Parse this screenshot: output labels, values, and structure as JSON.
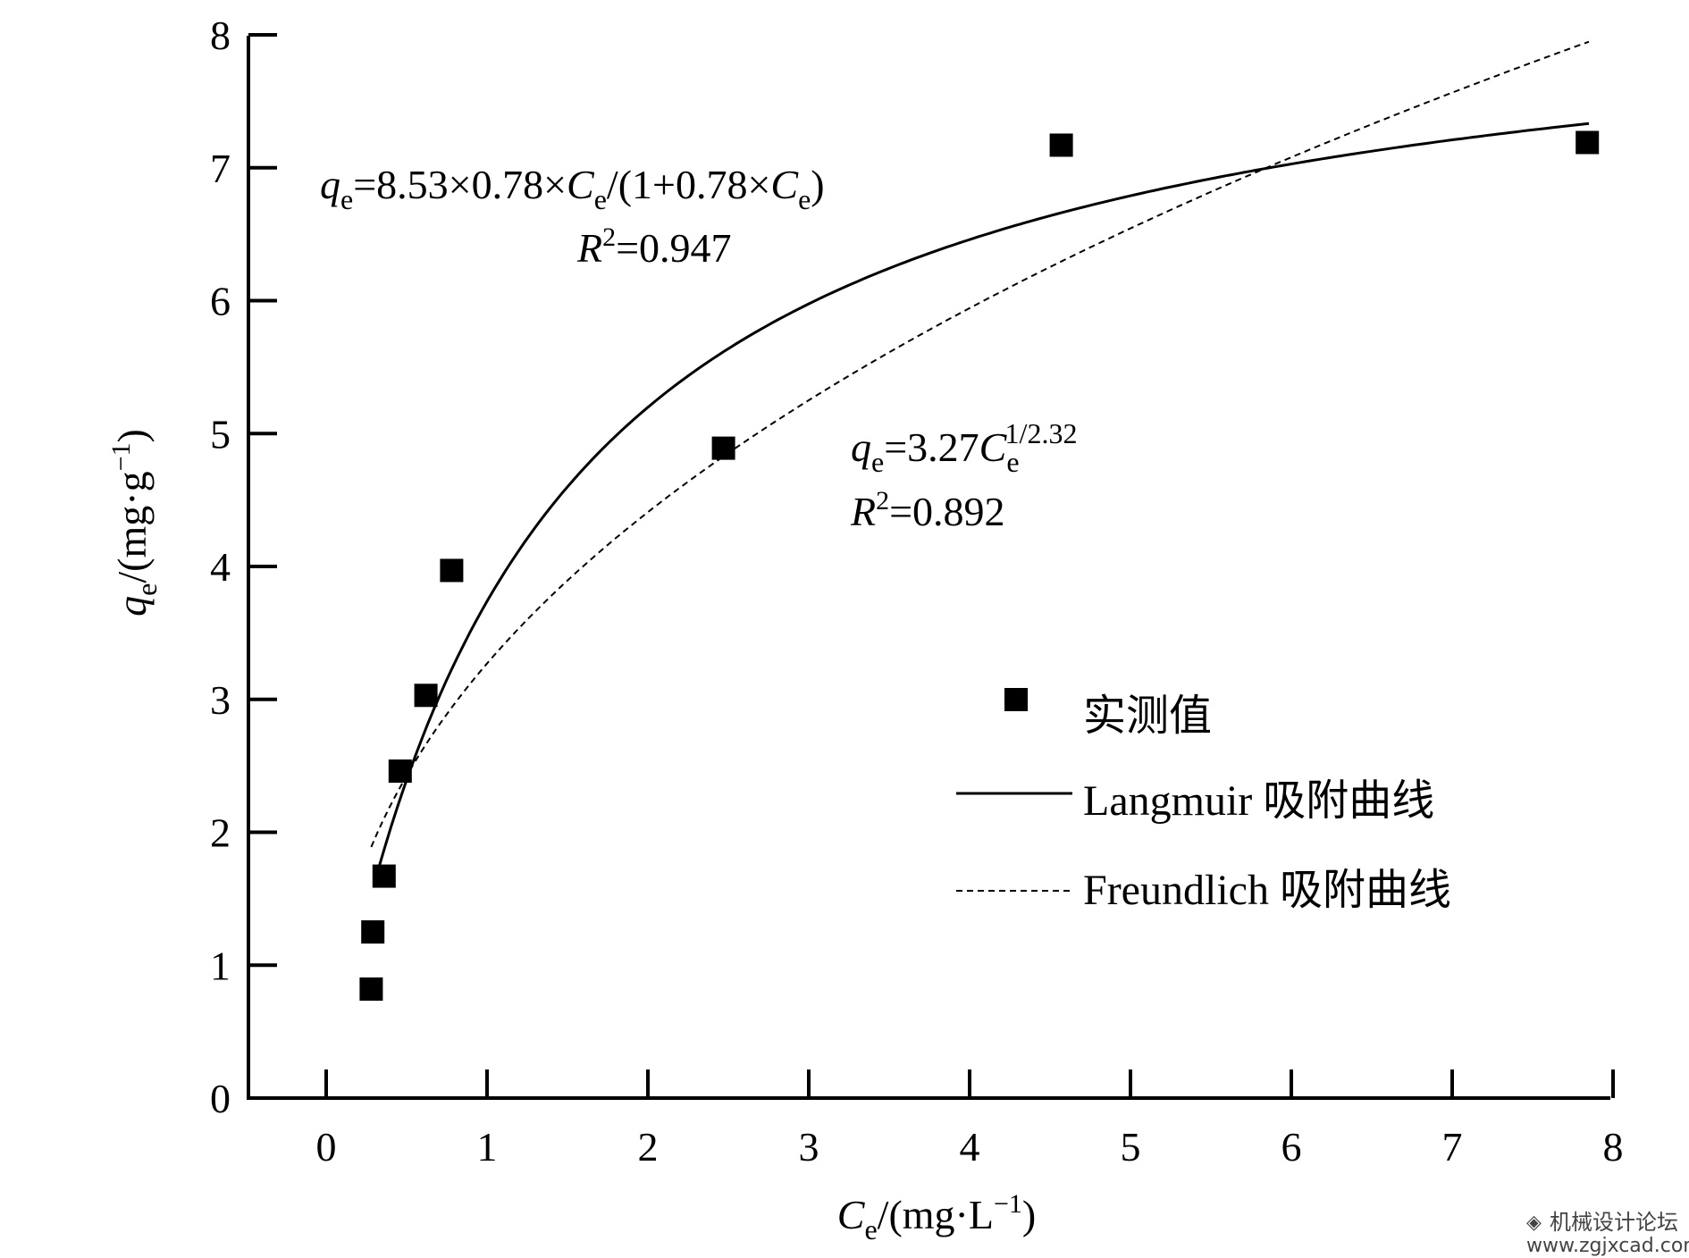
{
  "chart_data": {
    "type": "scatter",
    "xlabel": {
      "symbol": "C",
      "sub": "e",
      "unit_pre": "/(mg·L",
      "sup": "−1",
      "unit_post": ")"
    },
    "ylabel": {
      "symbol": "q",
      "sub": "e",
      "unit_pre": "/(mg·g",
      "sup": "−1",
      "unit_post": ")"
    },
    "xlim": [
      -0.5,
      8
    ],
    "ylim": [
      0,
      8
    ],
    "x_ticks": [
      0,
      1,
      2,
      3,
      4,
      5,
      6,
      7,
      8
    ],
    "y_ticks": [
      0,
      1,
      2,
      3,
      4,
      5,
      6,
      7,
      8
    ],
    "grid": false,
    "legend_position": "center-right",
    "series": [
      {
        "name": "实测值",
        "kind": "points",
        "marker": "filled-square",
        "color": "#000000",
        "points": [
          {
            "x": 0.28,
            "y": 0.82
          },
          {
            "x": 0.29,
            "y": 1.25
          },
          {
            "x": 0.36,
            "y": 1.67
          },
          {
            "x": 0.46,
            "y": 2.46
          },
          {
            "x": 0.62,
            "y": 3.03
          },
          {
            "x": 0.78,
            "y": 3.97
          },
          {
            "x": 2.47,
            "y": 4.89
          },
          {
            "x": 4.57,
            "y": 7.17
          },
          {
            "x": 7.84,
            "y": 7.19
          }
        ]
      },
      {
        "name": "Langmuir 吸附曲线",
        "kind": "curve",
        "model": "langmuir",
        "params": {
          "qm": 8.53,
          "b": 0.78
        },
        "x_range": [
          0.33,
          7.85
        ],
        "line_style": "solid",
        "color": "#000000"
      },
      {
        "name": "Freundlich 吸附曲线",
        "kind": "curve",
        "model": "freundlich",
        "params": {
          "k": 3.27,
          "n": 2.32
        },
        "x_range": [
          0.28,
          7.85
        ],
        "line_style": "dashed",
        "color": "#000000"
      }
    ],
    "annotations": {
      "langmuir": {
        "q": "q",
        "q_sub": "e",
        "eq_text": "=8.53×0.78×",
        "c": "C",
        "c_sub": "e",
        "eq_mid": "/(1+0.78×",
        "c2": "C",
        "c2_sub": "e",
        "eq_end": ")",
        "r": "R",
        "r_sup": "2",
        "r_val": "=0.947"
      },
      "freundlich": {
        "q": "q",
        "q_sub": "e",
        "eq_text": "=3.27",
        "c": "C",
        "c_sub": "e",
        "c_sup": "1/2.32",
        "r": "R",
        "r_sup": "2",
        "r_val": "=0.892"
      }
    }
  },
  "watermark": {
    "line1": "机械设计论坛",
    "line2": "www.zgjxcad.com"
  }
}
